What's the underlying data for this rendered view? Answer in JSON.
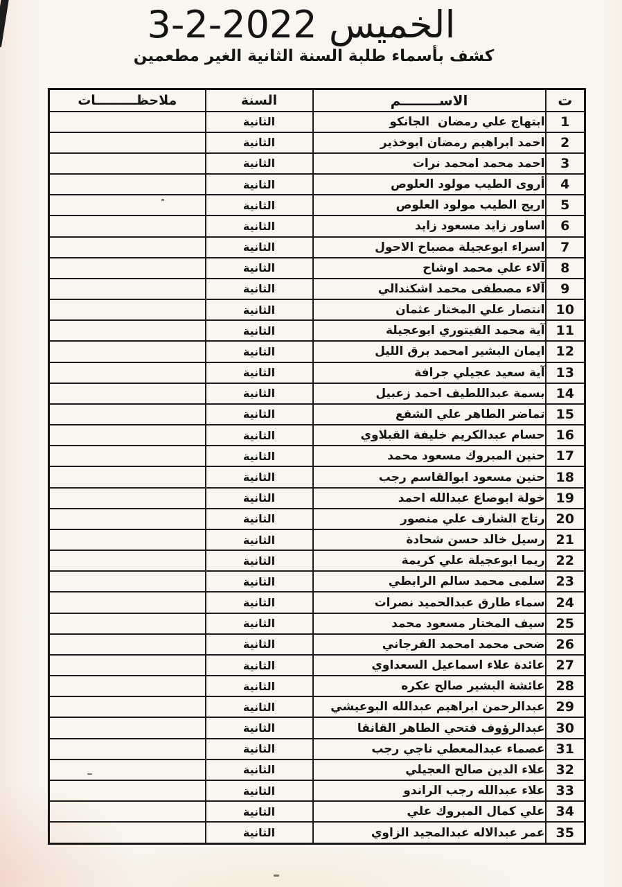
{
  "page": {
    "title": "الخميس 2022-2-3",
    "subtitle": "كشف بأسماء طلبة السنة الثانية الغير مطعمين"
  },
  "table": {
    "headers": {
      "index": "ت",
      "name": "الاســــــــم",
      "year": "السنة",
      "notes": "ملاحظـــــــــات"
    },
    "rows": [
      {
        "index": "1",
        "name": "ابتهاج علي رمضان  الجانكو",
        "year": "الثانية",
        "notes": ""
      },
      {
        "index": "2",
        "name": "احمد ابراهيم رمضان ابوخذير",
        "year": "الثانية",
        "notes": ""
      },
      {
        "index": "3",
        "name": "احمد محمد امحمد نرات",
        "year": "الثانية",
        "notes": ""
      },
      {
        "index": "4",
        "name": "أروى الطيب مولود العلوص",
        "year": "الثانية",
        "notes": ""
      },
      {
        "index": "5",
        "name": "اريج الطيب مولود العلوص",
        "year": "الثانية",
        "notes": ""
      },
      {
        "index": "6",
        "name": "اساور زايد مسعود زايد",
        "year": "الثانية",
        "notes": ""
      },
      {
        "index": "7",
        "name": "اسراء ابوعجيلة مصباح الاحول",
        "year": "الثانية",
        "notes": ""
      },
      {
        "index": "8",
        "name": "آلاء علي محمد اوشاح",
        "year": "الثانية",
        "notes": ""
      },
      {
        "index": "9",
        "name": "آلاء مصطفى محمد اشكندالي",
        "year": "الثانية",
        "notes": ""
      },
      {
        "index": "10",
        "name": "انتصار علي المختار عثمان",
        "year": "الثانية",
        "notes": ""
      },
      {
        "index": "11",
        "name": "آية محمد الفيتوري ابوعجيلة",
        "year": "الثانية",
        "notes": ""
      },
      {
        "index": "12",
        "name": "ايمان البشير امحمد برق الليل",
        "year": "الثانية",
        "notes": ""
      },
      {
        "index": "13",
        "name": "آية سعيد عجيلي جرافة",
        "year": "الثانية",
        "notes": ""
      },
      {
        "index": "14",
        "name": "بسمة عبداللطيف احمد زعبيل",
        "year": "الثانية",
        "notes": ""
      },
      {
        "index": "15",
        "name": "تماضر الطاهر علي الشفع",
        "year": "الثانية",
        "notes": ""
      },
      {
        "index": "16",
        "name": "حسام عبدالكريم خليفة القبلاوي",
        "year": "الثانية",
        "notes": ""
      },
      {
        "index": "17",
        "name": "حنين المبروك مسعود محمد",
        "year": "الثانية",
        "notes": ""
      },
      {
        "index": "18",
        "name": "حنين مسعود ابوالقاسم رجب",
        "year": "الثانية",
        "notes": ""
      },
      {
        "index": "19",
        "name": "خولة ابوصاع عبدالله احمد",
        "year": "الثانية",
        "notes": ""
      },
      {
        "index": "20",
        "name": "رتاج الشارف علي منصور",
        "year": "الثانية",
        "notes": ""
      },
      {
        "index": "21",
        "name": "رسيل خالد حسن شحادة",
        "year": "الثانية",
        "notes": ""
      },
      {
        "index": "22",
        "name": "ريما ابوعجيلة علي كريمة",
        "year": "الثانية",
        "notes": ""
      },
      {
        "index": "23",
        "name": "سلمى محمد سالم الرابطي",
        "year": "الثانية",
        "notes": ""
      },
      {
        "index": "24",
        "name": "سماء طارق عبدالحميد نصرات",
        "year": "الثانية",
        "notes": ""
      },
      {
        "index": "25",
        "name": "سيف المختار مسعود محمد",
        "year": "الثانية",
        "notes": ""
      },
      {
        "index": "26",
        "name": "ضحى محمد امحمد الفرجاني",
        "year": "الثانية",
        "notes": ""
      },
      {
        "index": "27",
        "name": "عائدة علاء اسماعيل السعداوي",
        "year": "الثانية",
        "notes": ""
      },
      {
        "index": "28",
        "name": "عائشة البشير صالح عكره",
        "year": "الثانية",
        "notes": ""
      },
      {
        "index": "29",
        "name": "عبدالرحمن ابراهيم عبدالله البوعيشي",
        "year": "الثانية",
        "notes": ""
      },
      {
        "index": "30",
        "name": "عبدالرؤوف فتحي الطاهر القانقا",
        "year": "الثانية",
        "notes": ""
      },
      {
        "index": "31",
        "name": "عصماء عبدالمعطي ناجي رجب",
        "year": "الثانية",
        "notes": ""
      },
      {
        "index": "32",
        "name": "علاء الدين صالح العجيلي",
        "year": "الثانية",
        "notes": ""
      },
      {
        "index": "33",
        "name": "علاء عبدالله رجب الراندو",
        "year": "الثانية",
        "notes": ""
      },
      {
        "index": "34",
        "name": "علي كمال المبروك علي",
        "year": "الثانية",
        "notes": ""
      },
      {
        "index": "35",
        "name": "عمر عبدالاله عبدالمجيد الزاوي",
        "year": "الثانية",
        "notes": ""
      }
    ]
  }
}
